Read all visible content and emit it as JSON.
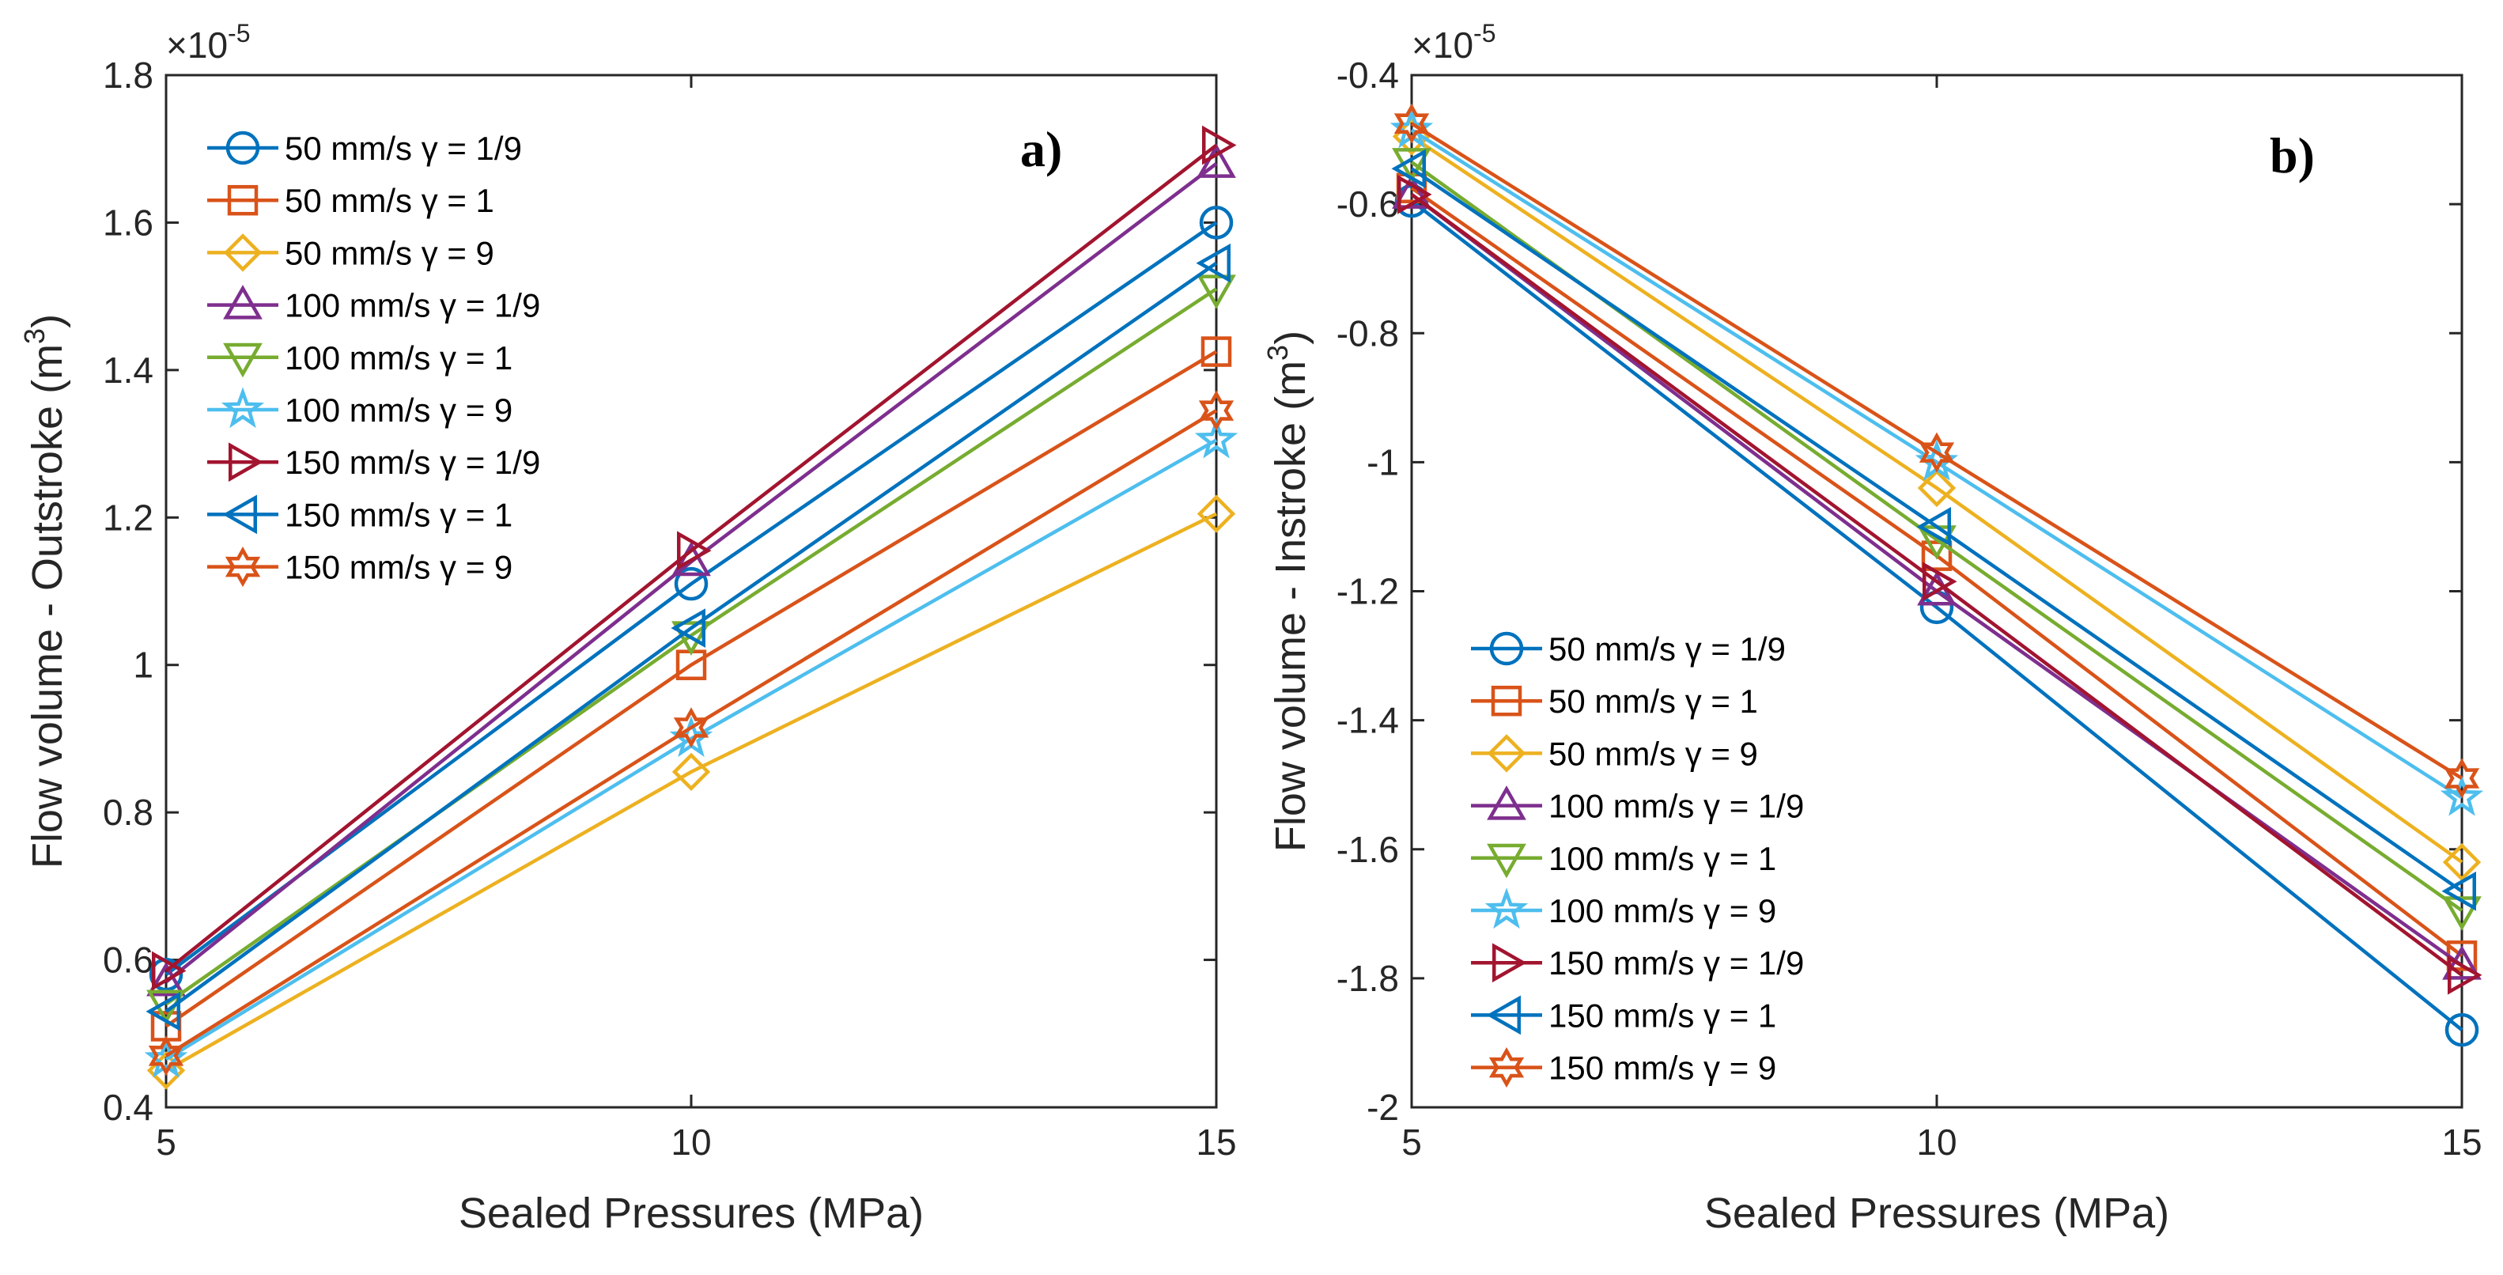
{
  "chart_data": [
    {
      "type": "line",
      "panel_label": "a)",
      "xlabel": "Sealed Pressures (MPa)",
      "ylabel_main": "Flow volume - Outstroke (m",
      "ylabel_sup": "3",
      "ylabel_close": ")",
      "exponent_base": "×10",
      "exponent_power": "-5",
      "x": [
        5,
        10,
        15
      ],
      "xlim": [
        5,
        15
      ],
      "ylim": [
        0.4,
        1.8
      ],
      "xticks": [
        5,
        10,
        15
      ],
      "xtick_labels": [
        "5",
        "10",
        "15"
      ],
      "yticks": [
        0.4,
        0.6,
        0.8,
        1.0,
        1.2,
        1.4,
        1.6,
        1.8
      ],
      "ytick_labels": [
        "0.4",
        "0.6",
        "0.8",
        "1",
        "1.2",
        "1.4",
        "1.6",
        "1.8"
      ],
      "legend_position": "top-left",
      "series": [
        {
          "name": "50 mm/s γ = 1/9",
          "marker": "circle",
          "color": "#0072BD",
          "values": [
            0.58,
            1.11,
            1.6
          ]
        },
        {
          "name": "50 mm/s γ = 1",
          "marker": "square",
          "color": "#D95319",
          "values": [
            0.51,
            1.0,
            1.425
          ]
        },
        {
          "name": "50 mm/s γ = 9",
          "marker": "diamond",
          "color": "#EDB120",
          "values": [
            0.45,
            0.855,
            1.205
          ]
        },
        {
          "name": "100 mm/s γ = 1/9",
          "marker": "triangle-up",
          "color": "#7E2F8E",
          "values": [
            0.57,
            1.14,
            1.68
          ]
        },
        {
          "name": "100 mm/s γ = 1",
          "marker": "triangle-down",
          "color": "#77AC30",
          "values": [
            0.54,
            1.04,
            1.51
          ]
        },
        {
          "name": "100 mm/s γ = 9",
          "marker": "pentagram",
          "color": "#4DBEEE",
          "values": [
            0.465,
            0.9,
            1.305
          ]
        },
        {
          "name": "150 mm/s γ = 1/9",
          "marker": "triangle-right",
          "color": "#A2142F",
          "values": [
            0.585,
            1.155,
            1.705
          ]
        },
        {
          "name": "150 mm/s γ = 1",
          "marker": "triangle-left",
          "color": "#0072BD",
          "values": [
            0.53,
            1.05,
            1.545
          ]
        },
        {
          "name": "150 mm/s γ = 9",
          "marker": "hexagram",
          "color": "#D95319",
          "values": [
            0.47,
            0.915,
            1.345
          ]
        }
      ]
    },
    {
      "type": "line",
      "panel_label": "b)",
      "xlabel": "Sealed Pressures (MPa)",
      "ylabel_main": "Flow volume - Instroke (m",
      "ylabel_sup": "3",
      "ylabel_close": ")",
      "exponent_base": "×10",
      "exponent_power": "-5",
      "x": [
        5,
        10,
        15
      ],
      "xlim": [
        5,
        15
      ],
      "ylim": [
        -2.0,
        -0.4
      ],
      "xticks": [
        5,
        10,
        15
      ],
      "xtick_labels": [
        "5",
        "10",
        "15"
      ],
      "yticks": [
        -2.0,
        -1.8,
        -1.6,
        -1.4,
        -1.2,
        -1.0,
        -0.8,
        -0.6,
        -0.4
      ],
      "ytick_labels": [
        "-2",
        "-1.8",
        "-1.6",
        "-1.4",
        "-1.2",
        "-1",
        "-0.8",
        "-0.6",
        "-0.4"
      ],
      "legend_position": "bottom-left",
      "series": [
        {
          "name": "50 mm/s γ = 1/9",
          "marker": "circle",
          "color": "#0072BD",
          "values": [
            -0.595,
            -1.225,
            -1.88
          ]
        },
        {
          "name": "50 mm/s γ = 1",
          "marker": "square",
          "color": "#D95319",
          "values": [
            -0.575,
            -1.145,
            -1.765
          ]
        },
        {
          "name": "50 mm/s γ = 9",
          "marker": "diamond",
          "color": "#EDB120",
          "values": [
            -0.495,
            -1.04,
            -1.62
          ]
        },
        {
          "name": "100 mm/s γ = 1/9",
          "marker": "triangle-up",
          "color": "#7E2F8E",
          "values": [
            -0.585,
            -1.2,
            -1.78
          ]
        },
        {
          "name": "100 mm/s γ = 1",
          "marker": "triangle-down",
          "color": "#77AC30",
          "values": [
            -0.535,
            -1.12,
            -1.695
          ]
        },
        {
          "name": "100 mm/s γ = 9",
          "marker": "pentagram",
          "color": "#4DBEEE",
          "values": [
            -0.485,
            -1.0,
            -1.52
          ]
        },
        {
          "name": "150 mm/s γ = 1/9",
          "marker": "triangle-right",
          "color": "#A2142F",
          "values": [
            -0.585,
            -1.185,
            -1.795
          ]
        },
        {
          "name": "150 mm/s γ = 1",
          "marker": "triangle-left",
          "color": "#0072BD",
          "values": [
            -0.545,
            -1.1,
            -1.665
          ]
        },
        {
          "name": "150 mm/s γ = 9",
          "marker": "hexagram",
          "color": "#D95319",
          "values": [
            -0.475,
            -0.985,
            -1.49
          ]
        }
      ]
    }
  ]
}
